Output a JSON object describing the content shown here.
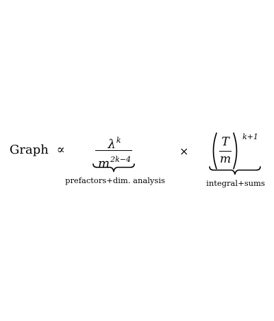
{
  "lhs": {
    "word": "Graph",
    "relation": "∝"
  },
  "term1": {
    "numerator_base": "λ",
    "numerator_exp": "k",
    "denominator_base": "m",
    "denominator_exp": "2k−4",
    "label": "prefactors+dim. analysis"
  },
  "operator": "×",
  "term2": {
    "numerator": "T",
    "denominator": "m",
    "exponent": "k+1",
    "label": "integral+sums"
  }
}
